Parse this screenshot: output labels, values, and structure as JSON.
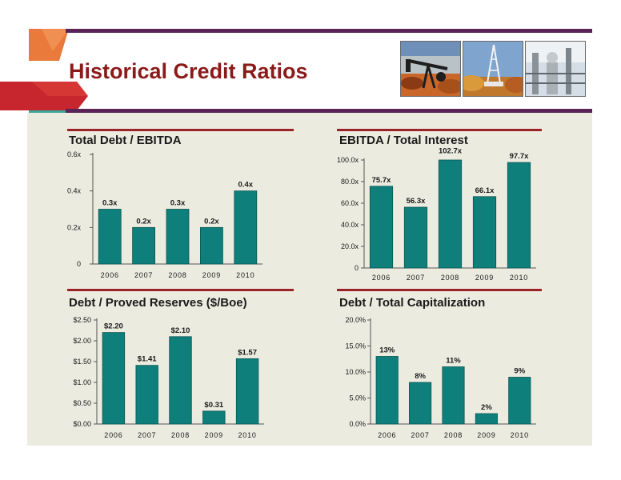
{
  "slide": {
    "title": "Historical Credit Ratios"
  },
  "colors": {
    "bar": "#0f7f7b",
    "bar_edge": "#0a5654",
    "accent_rule": "#9b2226",
    "title": "#8b1a1a",
    "band": "#5a2357",
    "panel": "#ecebe0"
  },
  "photos": [
    "oil-pumpjack-photo",
    "drilling-rig-photo",
    "processing-plant-photo"
  ],
  "chart_data": [
    {
      "type": "bar",
      "title": "Total Debt / EBITDA",
      "categories": [
        "2006",
        "2007",
        "2008",
        "2009",
        "2010"
      ],
      "values": [
        0.3,
        0.2,
        0.3,
        0.2,
        0.4
      ],
      "data_labels": [
        "0.3x",
        "0.2x",
        "0.3x",
        "0.2x",
        "0.4x"
      ],
      "ylim": [
        0,
        0.6
      ],
      "yticks": [
        0,
        0.2,
        0.4,
        0.6
      ],
      "ytick_labels": [
        "0",
        "0.2x",
        "0.4x",
        "0.6x"
      ],
      "grid": false
    },
    {
      "type": "bar",
      "title": "EBITDA / Total Interest",
      "categories": [
        "2006",
        "2007",
        "2008",
        "2009",
        "2010"
      ],
      "values": [
        75.7,
        56.3,
        102.7,
        66.1,
        97.7
      ],
      "data_labels": [
        "75.7x",
        "56.3x",
        "102.7x",
        "66.1x",
        "97.7x"
      ],
      "ylim": [
        0,
        100
      ],
      "yticks": [
        0,
        20,
        40,
        60,
        80,
        100
      ],
      "ytick_labels": [
        "0",
        "20.0x",
        "40.0x",
        "60.0x",
        "80.0x",
        "100.0x"
      ],
      "grid": false
    },
    {
      "type": "bar",
      "title": "Debt / Proved Reserves ($/Boe)",
      "categories": [
        "2006",
        "2007",
        "2008",
        "2009",
        "2010"
      ],
      "values": [
        2.2,
        1.41,
        2.1,
        0.31,
        1.57
      ],
      "data_labels": [
        "$2.20",
        "$1.41",
        "$2.10",
        "$0.31",
        "$1.57"
      ],
      "ylim": [
        0,
        2.5
      ],
      "yticks": [
        0,
        0.5,
        1.0,
        1.5,
        2.0,
        2.5
      ],
      "ytick_labels": [
        "$0.00",
        "$0.50",
        "$1.00",
        "$1.50",
        "$2.00",
        "$2.50"
      ],
      "grid": false
    },
    {
      "type": "bar",
      "title": "Debt / Total Capitalization",
      "categories": [
        "2006",
        "2007",
        "2008",
        "2009",
        "2010"
      ],
      "values": [
        13,
        8,
        11,
        2,
        9
      ],
      "data_labels": [
        "13%",
        "8%",
        "11%",
        "2%",
        "9%"
      ],
      "ylim": [
        0,
        20
      ],
      "yticks": [
        0,
        5,
        10,
        15,
        20
      ],
      "ytick_labels": [
        "0.0%",
        "5.0%",
        "10.0%",
        "15.0%",
        "20.0%"
      ],
      "grid": false
    }
  ]
}
